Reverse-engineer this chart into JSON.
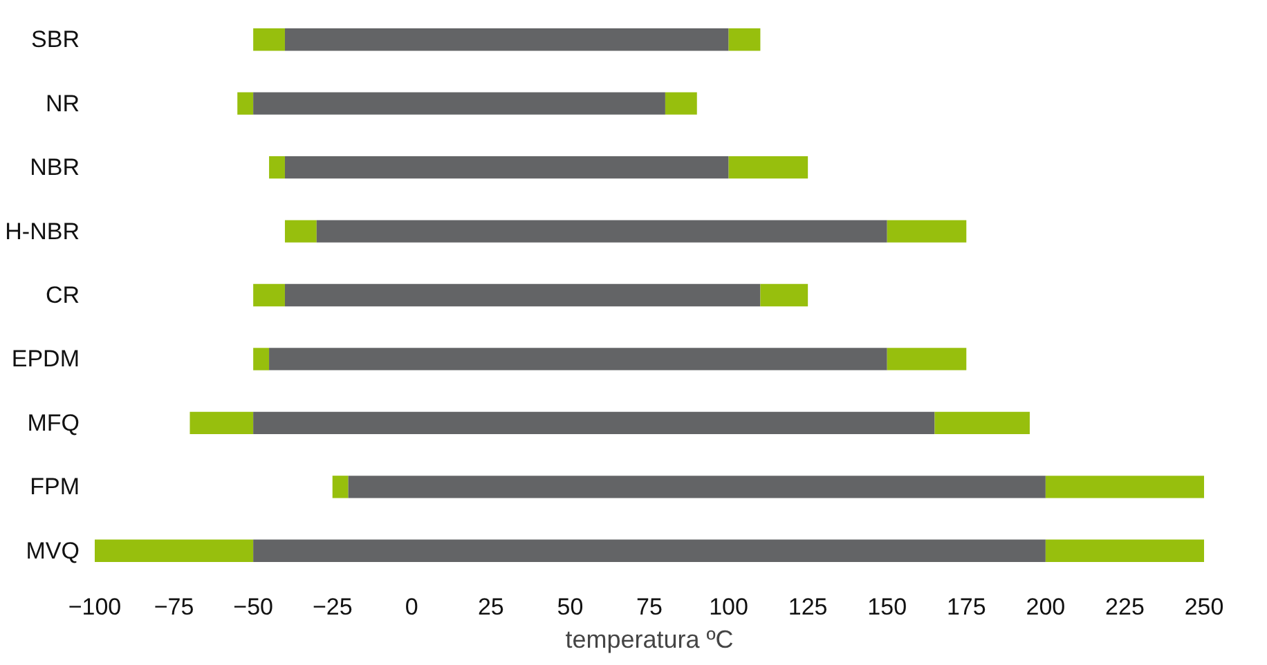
{
  "chart_data": {
    "type": "bar",
    "orientation": "horizontal",
    "xlabel": "temperatura ºC",
    "categories": [
      "SBR",
      "NR",
      "NBR",
      "H-NBR",
      "CR",
      "EPDM",
      "MFQ",
      "FPM",
      "MVQ"
    ],
    "series": [
      {
        "color": "#97bf0d",
        "base": [
          -50,
          -55,
          -45,
          -40,
          -50,
          -50,
          -70,
          -25,
          -100
        ],
        "values": [
          10,
          5,
          5,
          10,
          10,
          5,
          20,
          5,
          50
        ]
      },
      {
        "color": "#636466",
        "base": [
          -40,
          -50,
          -40,
          -30,
          -40,
          -45,
          -50,
          -20,
          -50
        ],
        "values": [
          140,
          130,
          140,
          180,
          150,
          195,
          215,
          220,
          250
        ]
      },
      {
        "color": "#97bf0d",
        "base": [
          100,
          80,
          100,
          150,
          110,
          150,
          165,
          200,
          200
        ],
        "values": [
          10,
          10,
          25,
          25,
          15,
          25,
          30,
          50,
          50
        ]
      }
    ],
    "xlim": [
      -100,
      250
    ],
    "xticks": [
      -100,
      -75,
      -50,
      -25,
      0,
      25,
      50,
      75,
      100,
      125,
      150,
      175,
      200,
      225,
      250
    ],
    "grid": false
  }
}
